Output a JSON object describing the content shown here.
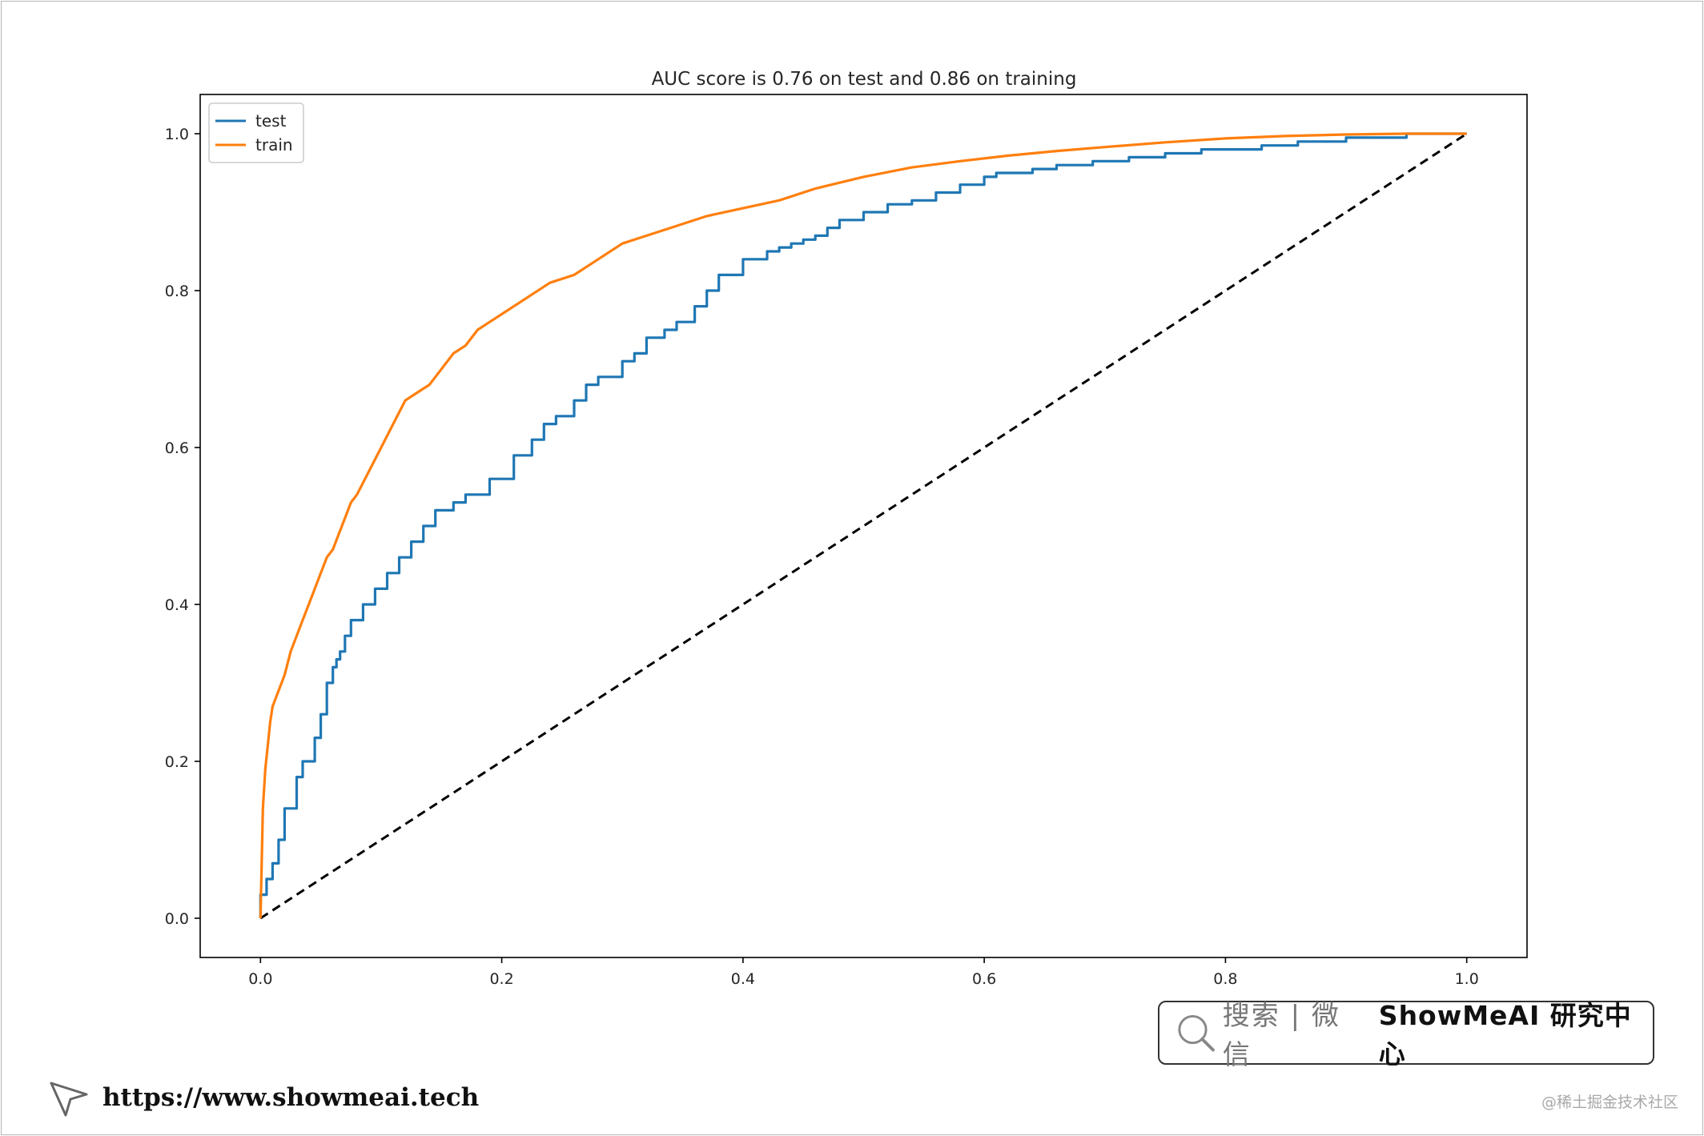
{
  "chart_data": {
    "type": "line",
    "title": "AUC score is 0.76 on test and 0.86 on training",
    "xlabel": "",
    "ylabel": "",
    "xlim": [
      -0.05,
      1.05
    ],
    "ylim": [
      -0.05,
      1.05
    ],
    "x_ticks": [
      "0.0",
      "0.2",
      "0.4",
      "0.6",
      "0.8",
      "1.0"
    ],
    "y_ticks": [
      "0.0",
      "0.2",
      "0.4",
      "0.6",
      "0.8",
      "1.0"
    ],
    "grid": false,
    "legend_position": "top-left",
    "series": [
      {
        "name": "test",
        "color": "#1f77b4",
        "x": [
          0.0,
          0.0,
          0.005,
          0.005,
          0.01,
          0.01,
          0.015,
          0.015,
          0.02,
          0.02,
          0.03,
          0.03,
          0.035,
          0.035,
          0.045,
          0.045,
          0.05,
          0.05,
          0.055,
          0.055,
          0.06,
          0.06,
          0.063,
          0.063,
          0.066,
          0.066,
          0.07,
          0.07,
          0.075,
          0.075,
          0.085,
          0.085,
          0.095,
          0.095,
          0.105,
          0.105,
          0.115,
          0.115,
          0.125,
          0.125,
          0.135,
          0.135,
          0.145,
          0.145,
          0.16,
          0.16,
          0.17,
          0.17,
          0.19,
          0.19,
          0.21,
          0.21,
          0.225,
          0.225,
          0.235,
          0.235,
          0.245,
          0.245,
          0.26,
          0.26,
          0.27,
          0.27,
          0.28,
          0.28,
          0.3,
          0.3,
          0.31,
          0.31,
          0.32,
          0.32,
          0.335,
          0.335,
          0.345,
          0.345,
          0.36,
          0.36,
          0.37,
          0.37,
          0.38,
          0.38,
          0.4,
          0.4,
          0.42,
          0.42,
          0.43,
          0.43,
          0.44,
          0.44,
          0.45,
          0.45,
          0.46,
          0.46,
          0.47,
          0.47,
          0.48,
          0.48,
          0.5,
          0.5,
          0.52,
          0.52,
          0.54,
          0.54,
          0.56,
          0.56,
          0.58,
          0.58,
          0.6,
          0.6,
          0.61,
          0.61,
          0.64,
          0.64,
          0.66,
          0.66,
          0.69,
          0.69,
          0.72,
          0.72,
          0.75,
          0.75,
          0.78,
          0.78,
          0.83,
          0.83,
          0.86,
          0.86,
          0.9,
          0.9,
          0.95,
          0.95,
          0.97,
          1.0
        ],
        "y": [
          0.0,
          0.03,
          0.03,
          0.05,
          0.05,
          0.07,
          0.07,
          0.1,
          0.1,
          0.14,
          0.14,
          0.18,
          0.18,
          0.2,
          0.2,
          0.23,
          0.23,
          0.26,
          0.26,
          0.3,
          0.3,
          0.32,
          0.32,
          0.33,
          0.33,
          0.34,
          0.34,
          0.36,
          0.36,
          0.38,
          0.38,
          0.4,
          0.4,
          0.42,
          0.42,
          0.44,
          0.44,
          0.46,
          0.46,
          0.48,
          0.48,
          0.5,
          0.5,
          0.52,
          0.52,
          0.53,
          0.53,
          0.54,
          0.54,
          0.56,
          0.56,
          0.59,
          0.59,
          0.61,
          0.61,
          0.63,
          0.63,
          0.64,
          0.64,
          0.66,
          0.66,
          0.68,
          0.68,
          0.69,
          0.69,
          0.71,
          0.71,
          0.72,
          0.72,
          0.74,
          0.74,
          0.75,
          0.75,
          0.76,
          0.76,
          0.78,
          0.78,
          0.8,
          0.8,
          0.82,
          0.82,
          0.84,
          0.84,
          0.85,
          0.85,
          0.855,
          0.855,
          0.86,
          0.86,
          0.865,
          0.865,
          0.87,
          0.87,
          0.88,
          0.88,
          0.89,
          0.89,
          0.9,
          0.9,
          0.91,
          0.91,
          0.915,
          0.915,
          0.925,
          0.925,
          0.935,
          0.935,
          0.945,
          0.945,
          0.95,
          0.95,
          0.955,
          0.955,
          0.96,
          0.96,
          0.965,
          0.965,
          0.97,
          0.97,
          0.975,
          0.975,
          0.98,
          0.98,
          0.985,
          0.985,
          0.99,
          0.99,
          0.995,
          0.995,
          1.0,
          1.0,
          1.0
        ]
      },
      {
        "name": "train",
        "color": "#ff7f0e",
        "x": [
          0.0,
          0.001,
          0.002,
          0.004,
          0.006,
          0.008,
          0.01,
          0.015,
          0.02,
          0.025,
          0.03,
          0.035,
          0.04,
          0.045,
          0.05,
          0.055,
          0.06,
          0.065,
          0.07,
          0.075,
          0.08,
          0.09,
          0.1,
          0.11,
          0.12,
          0.13,
          0.14,
          0.15,
          0.16,
          0.17,
          0.18,
          0.19,
          0.2,
          0.22,
          0.24,
          0.26,
          0.28,
          0.3,
          0.32,
          0.34,
          0.37,
          0.4,
          0.43,
          0.46,
          0.5,
          0.54,
          0.58,
          0.62,
          0.66,
          0.7,
          0.75,
          0.8,
          0.85,
          0.9,
          0.95,
          1.0
        ],
        "y": [
          0.0,
          0.07,
          0.14,
          0.19,
          0.22,
          0.25,
          0.27,
          0.29,
          0.31,
          0.34,
          0.36,
          0.38,
          0.4,
          0.42,
          0.44,
          0.46,
          0.47,
          0.49,
          0.51,
          0.53,
          0.54,
          0.57,
          0.6,
          0.63,
          0.66,
          0.67,
          0.68,
          0.7,
          0.72,
          0.73,
          0.75,
          0.76,
          0.77,
          0.79,
          0.81,
          0.82,
          0.84,
          0.86,
          0.87,
          0.88,
          0.895,
          0.905,
          0.915,
          0.93,
          0.945,
          0.957,
          0.965,
          0.972,
          0.978,
          0.983,
          0.989,
          0.994,
          0.997,
          0.999,
          1.0,
          1.0
        ]
      },
      {
        "name": "",
        "color": "#000000",
        "dashed": true,
        "x": [
          0.0,
          1.0
        ],
        "y": [
          0.0,
          1.0
        ]
      }
    ]
  },
  "banner": {
    "search_prompt": "搜索 | 微信",
    "brand": "ShowMeAI 研究中心"
  },
  "footer": {
    "url": "https://www.showmeai.tech"
  },
  "watermark": "@稀土掘金技术社区"
}
